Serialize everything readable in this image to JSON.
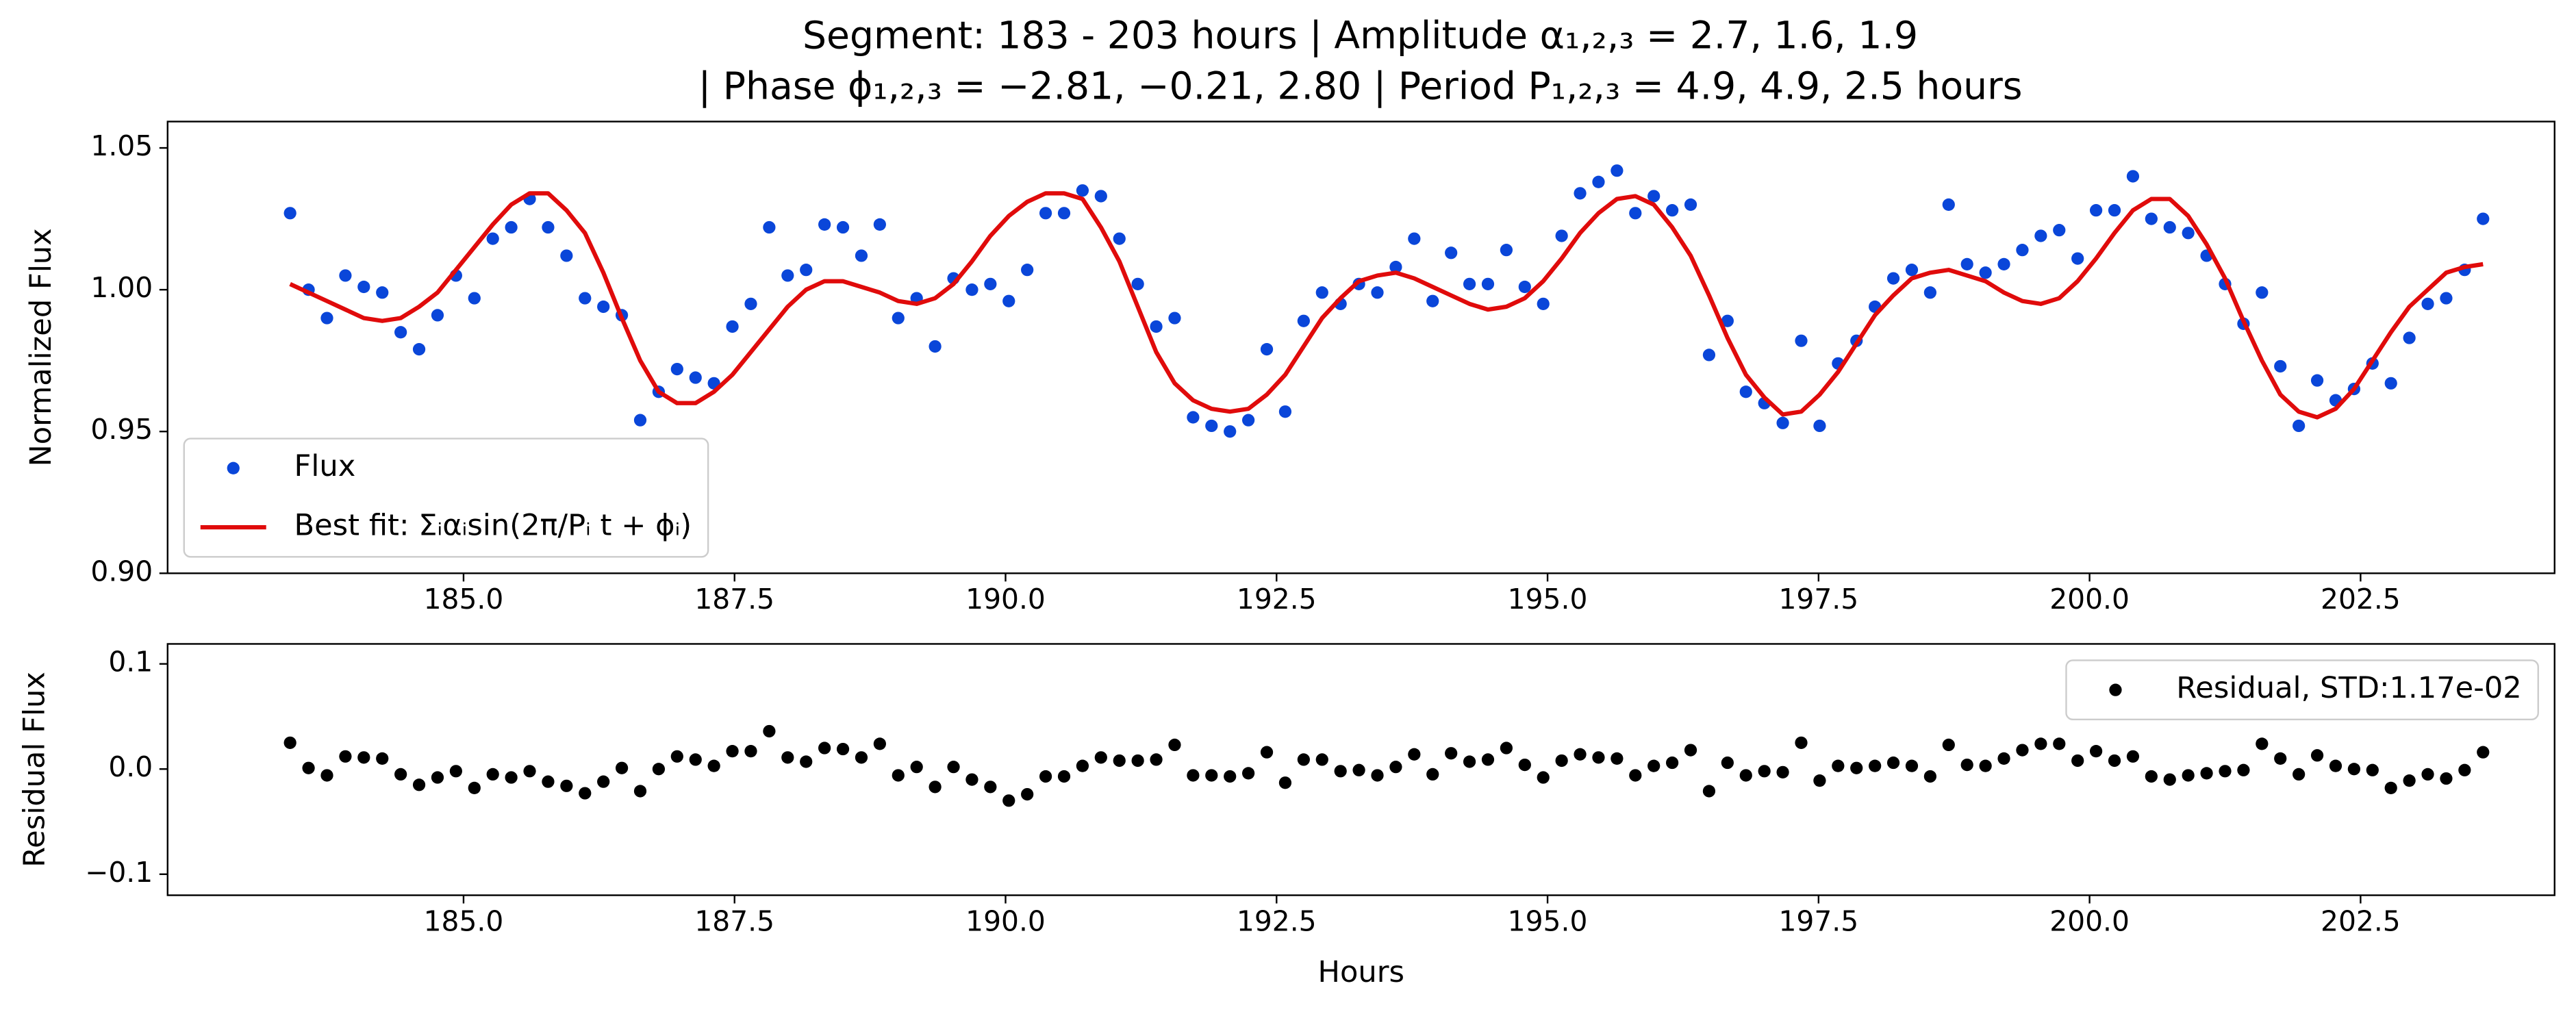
{
  "chart_data": [
    {
      "type": "line",
      "title": [
        "Segment: 183 - 203 hours  |  Amplitude α₁,₂,₃ = 2.7, 1.6, 1.9",
        "|  Phase ϕ₁,₂,₃ = −2.81, −0.21, 2.80  |  Period P₁,₂,₃ = 4.9, 4.9, 2.5 hours"
      ],
      "ylabel": "Normalized Flux",
      "x": [
        183.4,
        183.57,
        183.74,
        183.91,
        184.08,
        184.25,
        184.42,
        184.59,
        184.76,
        184.93,
        185.1,
        185.27,
        185.44,
        185.61,
        185.78,
        185.95,
        186.12,
        186.29,
        186.46,
        186.63,
        186.8,
        186.97,
        187.14,
        187.31,
        187.48,
        187.65,
        187.82,
        187.99,
        188.16,
        188.33,
        188.5,
        188.67,
        188.84,
        189.01,
        189.18,
        189.35,
        189.52,
        189.69,
        189.86,
        190.03,
        190.2,
        190.37,
        190.54,
        190.71,
        190.88,
        191.05,
        191.22,
        191.39,
        191.56,
        191.73,
        191.9,
        192.07,
        192.24,
        192.41,
        192.58,
        192.75,
        192.92,
        193.09,
        193.26,
        193.43,
        193.6,
        193.77,
        193.94,
        194.11,
        194.28,
        194.45,
        194.62,
        194.79,
        194.96,
        195.13,
        195.3,
        195.47,
        195.64,
        195.81,
        195.98,
        196.15,
        196.32,
        196.49,
        196.66,
        196.83,
        197.0,
        197.17,
        197.34,
        197.51,
        197.68,
        197.85,
        198.02,
        198.19,
        198.36,
        198.53,
        198.7,
        198.87,
        199.04,
        199.21,
        199.38,
        199.55,
        199.72,
        199.89,
        200.06,
        200.23,
        200.4,
        200.57,
        200.74,
        200.91,
        201.08,
        201.25,
        201.42,
        201.59,
        201.76,
        201.93,
        202.1,
        202.27,
        202.44,
        202.61,
        202.78,
        202.95,
        203.12,
        203.29,
        203.46,
        203.63
      ],
      "series": [
        {
          "name": "Flux",
          "style": "marker",
          "color": "#0a46d9",
          "values": [
            1.027,
            1.0,
            0.99,
            1.005,
            1.001,
            0.999,
            0.985,
            0.979,
            0.991,
            1.005,
            0.997,
            1.018,
            1.022,
            1.032,
            1.022,
            1.012,
            0.997,
            0.994,
            0.991,
            0.954,
            0.964,
            0.972,
            0.969,
            0.967,
            0.987,
            0.995,
            1.022,
            1.005,
            1.007,
            1.023,
            1.022,
            1.012,
            1.023,
            0.99,
            0.997,
            0.98,
            1.004,
            1.0,
            1.002,
            0.996,
            1.007,
            1.027,
            1.027,
            1.035,
            1.033,
            1.018,
            1.002,
            0.987,
            0.99,
            0.955,
            0.952,
            0.95,
            0.954,
            0.979,
            0.957,
            0.989,
            0.999,
            0.995,
            1.002,
            0.999,
            1.008,
            1.018,
            0.996,
            1.013,
            1.002,
            1.002,
            1.014,
            1.001,
            0.995,
            1.019,
            1.034,
            1.038,
            1.042,
            1.027,
            1.033,
            1.028,
            1.03,
            0.977,
            0.989,
            0.964,
            0.96,
            0.953,
            0.982,
            0.952,
            0.974,
            0.982,
            0.994,
            1.004,
            1.007,
            0.999,
            1.03,
            1.009,
            1.006,
            1.009,
            1.014,
            1.019,
            1.021,
            1.011,
            1.028,
            1.028,
            1.04,
            1.025,
            1.022,
            1.02,
            1.012,
            1.002,
            0.988,
            0.999,
            0.973,
            0.952,
            0.968,
            0.961,
            0.965,
            0.974,
            0.967,
            0.983,
            0.995,
            0.997,
            1.007,
            1.025
          ]
        },
        {
          "name": "Best fit: Σᵢαᵢsin(2π/Pᵢ t + ϕᵢ)",
          "style": "line",
          "color": "#e00b0b",
          "values": [
            1.002,
            0.999,
            0.996,
            0.993,
            0.99,
            0.989,
            0.99,
            0.994,
            0.999,
            1.007,
            1.015,
            1.023,
            1.03,
            1.034,
            1.034,
            1.028,
            1.02,
            1.006,
            0.99,
            0.975,
            0.964,
            0.96,
            0.96,
            0.964,
            0.97,
            0.978,
            0.986,
            0.994,
            1.0,
            1.003,
            1.003,
            1.001,
            0.999,
            0.996,
            0.995,
            0.997,
            1.002,
            1.01,
            1.019,
            1.026,
            1.031,
            1.034,
            1.034,
            1.032,
            1.022,
            1.01,
            0.994,
            0.978,
            0.967,
            0.961,
            0.958,
            0.957,
            0.958,
            0.963,
            0.97,
            0.98,
            0.99,
            0.997,
            1.003,
            1.005,
            1.006,
            1.004,
            1.001,
            0.998,
            0.995,
            0.993,
            0.994,
            0.997,
            1.003,
            1.011,
            1.02,
            1.027,
            1.032,
            1.033,
            1.03,
            1.022,
            1.012,
            0.998,
            0.983,
            0.97,
            0.962,
            0.956,
            0.957,
            0.963,
            0.971,
            0.981,
            0.991,
            0.998,
            1.004,
            1.006,
            1.007,
            1.005,
            1.003,
            0.999,
            0.996,
            0.995,
            0.997,
            1.003,
            1.011,
            1.02,
            1.028,
            1.032,
            1.032,
            1.026,
            1.016,
            1.004,
            0.989,
            0.975,
            0.963,
            0.957,
            0.955,
            0.958,
            0.965,
            0.975,
            0.985,
            0.994,
            1.0,
            1.006,
            1.008,
            1.009
          ]
        }
      ],
      "xlim": [
        182.27,
        204.29
      ],
      "xticks": [
        {
          "value": 185,
          "label": "185.0"
        },
        {
          "value": 187.5,
          "label": "187.5"
        },
        {
          "value": 190,
          "label": "190.0"
        },
        {
          "value": 192.5,
          "label": "192.5"
        },
        {
          "value": 195,
          "label": "195.0"
        },
        {
          "value": 197.5,
          "label": "197.5"
        },
        {
          "value": 200,
          "label": "200.0"
        },
        {
          "value": 202.5,
          "label": "202.5"
        }
      ],
      "ylim": [
        0.9,
        1.0593
      ],
      "yticks": [
        {
          "value": 0.9,
          "label": "0.90"
        },
        0.95,
        {
          "value": 1,
          "label": "1.00"
        },
        1.05
      ],
      "legend": "lower left"
    },
    {
      "type": "scatter",
      "xlabel": "Hours",
      "ylabel": "Residual Flux",
      "x": [
        183.4,
        183.57,
        183.74,
        183.91,
        184.08,
        184.25,
        184.42,
        184.59,
        184.76,
        184.93,
        185.1,
        185.27,
        185.44,
        185.61,
        185.78,
        185.95,
        186.12,
        186.29,
        186.46,
        186.63,
        186.8,
        186.97,
        187.14,
        187.31,
        187.48,
        187.65,
        187.82,
        187.99,
        188.16,
        188.33,
        188.5,
        188.67,
        188.84,
        189.01,
        189.18,
        189.35,
        189.52,
        189.69,
        189.86,
        190.03,
        190.2,
        190.37,
        190.54,
        190.71,
        190.88,
        191.05,
        191.22,
        191.39,
        191.56,
        191.73,
        191.9,
        192.07,
        192.24,
        192.41,
        192.58,
        192.75,
        192.92,
        193.09,
        193.26,
        193.43,
        193.6,
        193.77,
        193.94,
        194.11,
        194.28,
        194.45,
        194.62,
        194.79,
        194.96,
        195.13,
        195.3,
        195.47,
        195.64,
        195.81,
        195.98,
        196.15,
        196.32,
        196.49,
        196.66,
        196.83,
        197.0,
        197.17,
        197.34,
        197.51,
        197.68,
        197.85,
        198.02,
        198.19,
        198.36,
        198.53,
        198.7,
        198.87,
        199.04,
        199.21,
        199.38,
        199.55,
        199.72,
        199.89,
        200.06,
        200.23,
        200.4,
        200.57,
        200.74,
        200.91,
        201.08,
        201.25,
        201.42,
        201.59,
        201.76,
        201.93,
        202.1,
        202.27,
        202.44,
        202.61,
        202.78,
        202.95,
        203.12,
        203.29,
        203.46,
        203.63
      ],
      "series": [
        {
          "name": "Residual, STD:1.17e-02",
          "style": "marker",
          "color": "#000000",
          "values": [
            0.025,
            0.001,
            -0.006,
            0.012,
            0.011,
            0.01,
            -0.005,
            -0.015,
            -0.008,
            -0.002,
            -0.018,
            -0.005,
            -0.008,
            -0.002,
            -0.012,
            -0.016,
            -0.023,
            -0.012,
            0.001,
            -0.021,
            0,
            0.012,
            0.009,
            0.003,
            0.017,
            0.017,
            0.036,
            0.011,
            0.007,
            0.02,
            0.019,
            0.011,
            0.024,
            -0.006,
            0.002,
            -0.017,
            0.002,
            -0.01,
            -0.017,
            -0.03,
            -0.024,
            -0.007,
            -0.007,
            0.003,
            0.011,
            0.008,
            0.008,
            0.009,
            0.023,
            -0.006,
            -0.006,
            -0.007,
            -0.004,
            0.016,
            -0.013,
            0.009,
            0.009,
            -0.002,
            -0.001,
            -0.006,
            0.002,
            0.014,
            -0.005,
            0.015,
            0.007,
            0.009,
            0.02,
            0.004,
            -0.008,
            0.008,
            0.014,
            0.011,
            0.01,
            -0.006,
            0.003,
            0.006,
            0.018,
            -0.021,
            0.006,
            -0.006,
            -0.002,
            -0.003,
            0.025,
            -0.011,
            0.003,
            0.001,
            0.003,
            0.006,
            0.003,
            -0.007,
            0.023,
            0.004,
            0.003,
            0.01,
            0.018,
            0.024,
            0.024,
            0.008,
            0.017,
            0.008,
            0.012,
            -0.007,
            -0.01,
            -0.006,
            -0.004,
            -0.002,
            -0.001,
            0.024,
            0.01,
            -0.005,
            0.013,
            0.003,
            0,
            -0.001,
            -0.018,
            -0.011,
            -0.005,
            -0.009,
            -0.001,
            0.016
          ]
        }
      ],
      "xlim": [
        182.27,
        204.29
      ],
      "xticks": [
        {
          "value": 185,
          "label": "185.0"
        },
        {
          "value": 187.5,
          "label": "187.5"
        },
        {
          "value": 190,
          "label": "190.0"
        },
        {
          "value": 192.5,
          "label": "192.5"
        },
        {
          "value": 195,
          "label": "195.0"
        },
        {
          "value": 197.5,
          "label": "197.5"
        },
        {
          "value": 200,
          "label": "200.0"
        },
        {
          "value": 202.5,
          "label": "202.5"
        }
      ],
      "ylim": [
        -0.12,
        0.119
      ],
      "yticks": [
        {
          "value": -0.1,
          "label": "−0.1"
        },
        {
          "value": 0,
          "label": "0.0"
        },
        0.1
      ],
      "legend": "upper right"
    }
  ]
}
